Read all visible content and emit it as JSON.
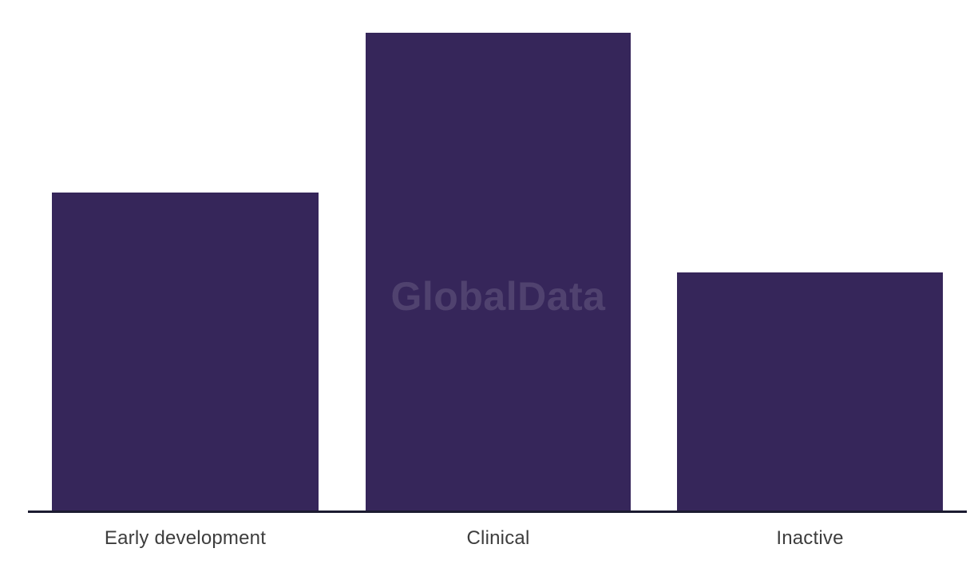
{
  "page": {
    "background_color": "#ffffff"
  },
  "chart_data": {
    "type": "bar",
    "title": "",
    "xlabel": "",
    "ylabel": "",
    "categories": [
      "Early development",
      "Clinical",
      "Inactive"
    ],
    "values": [
      66.6,
      100,
      49.9
    ],
    "value_unit": "percent_of_tallest_bar",
    "note": "No y-axis, gridlines, or numeric data labels are shown; values are relative bar heights estimated from pixels (399:599:299)",
    "ylim": [
      0,
      100
    ],
    "grid": false,
    "legend": "none",
    "bar_color": "#36265A",
    "axis_line_color": "#1B1B30",
    "label_color": "#3D3D3D",
    "watermark": {
      "text": "GlobalData",
      "color": "rgba(255,255,255,0.13)"
    }
  }
}
